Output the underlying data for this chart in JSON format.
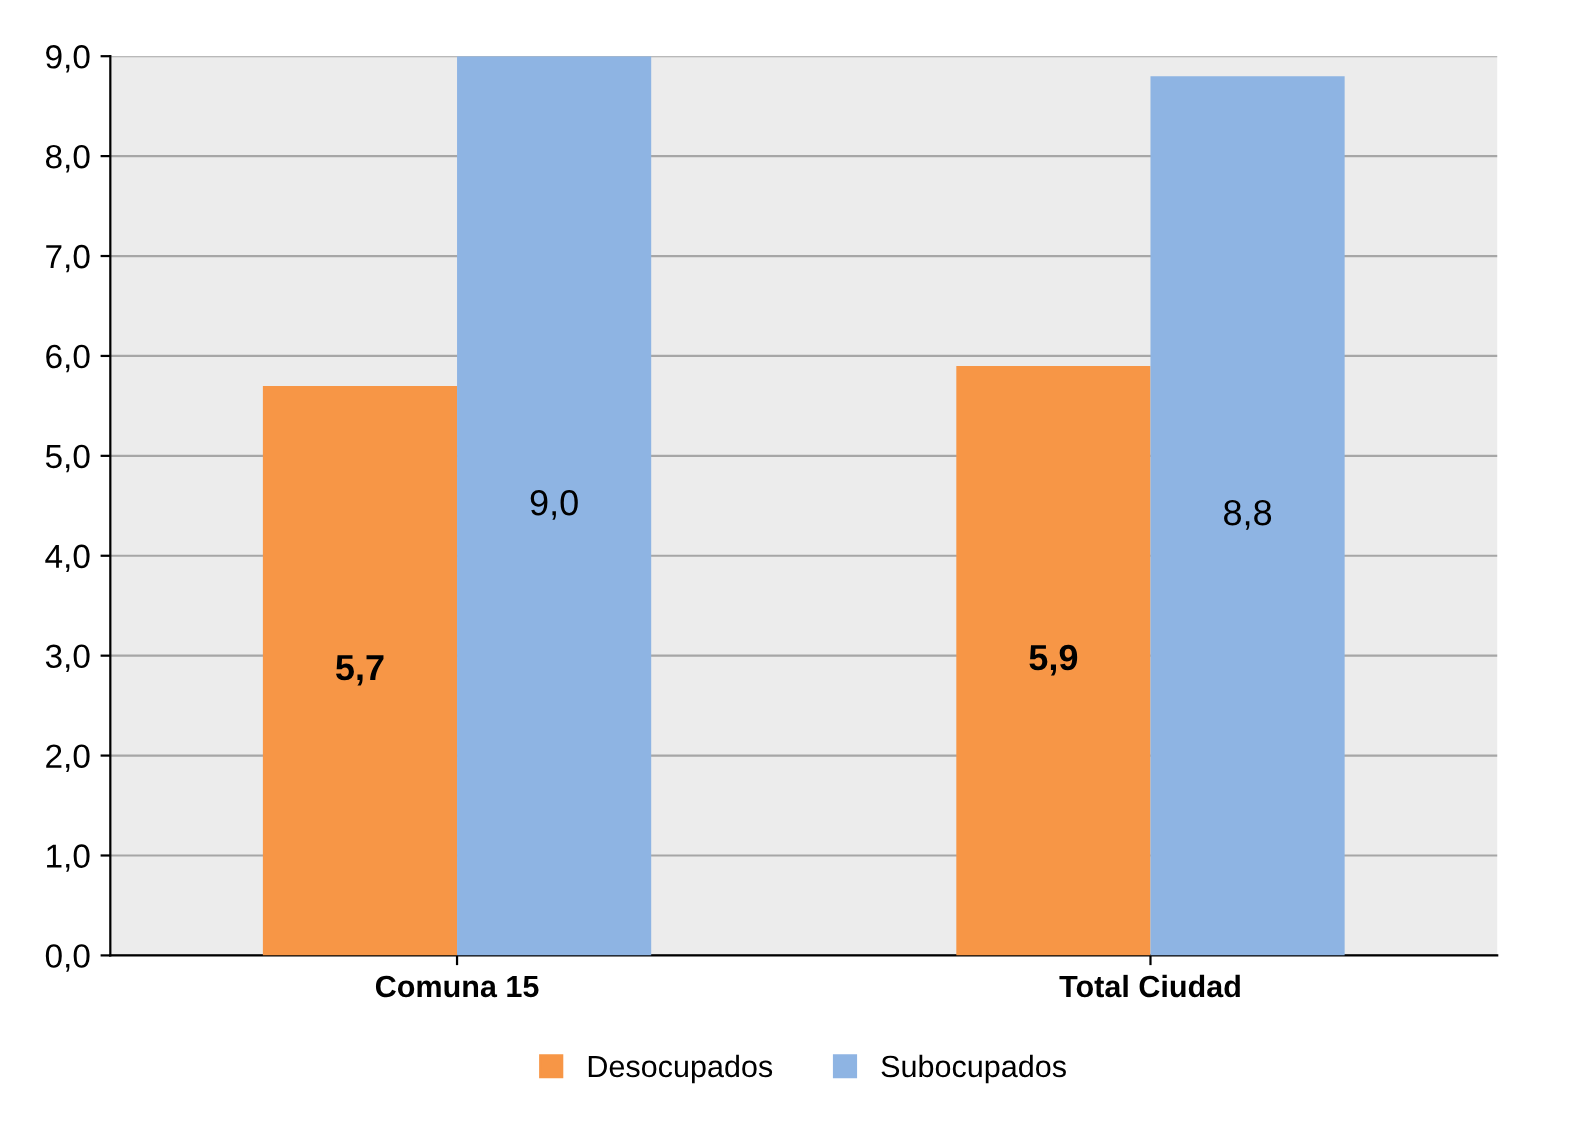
{
  "chart_data": {
    "type": "bar",
    "categories": [
      "Comuna 15",
      "Total Ciudad"
    ],
    "series": [
      {
        "name": "Desocupados",
        "color": "#f79646",
        "values": [
          5.7,
          5.9
        ],
        "value_labels": [
          "5,7",
          "5,9"
        ]
      },
      {
        "name": "Subocupados",
        "color": "#8eb4e3",
        "values": [
          9.0,
          8.8
        ],
        "value_labels": [
          "9,0",
          "8,8"
        ]
      }
    ],
    "ylim": [
      0,
      9
    ],
    "yticks": [
      {
        "value": 0,
        "label": "0,0"
      },
      {
        "value": 1,
        "label": "1,0"
      },
      {
        "value": 2,
        "label": "2,0"
      },
      {
        "value": 3,
        "label": "3,0"
      },
      {
        "value": 4,
        "label": "4,0"
      },
      {
        "value": 5,
        "label": "5,0"
      },
      {
        "value": 6,
        "label": "6,0"
      },
      {
        "value": 7,
        "label": "7,0"
      },
      {
        "value": 8,
        "label": "8,0"
      },
      {
        "value": 9,
        "label": "9,0"
      }
    ],
    "grid": "y",
    "legend": "bottom"
  }
}
